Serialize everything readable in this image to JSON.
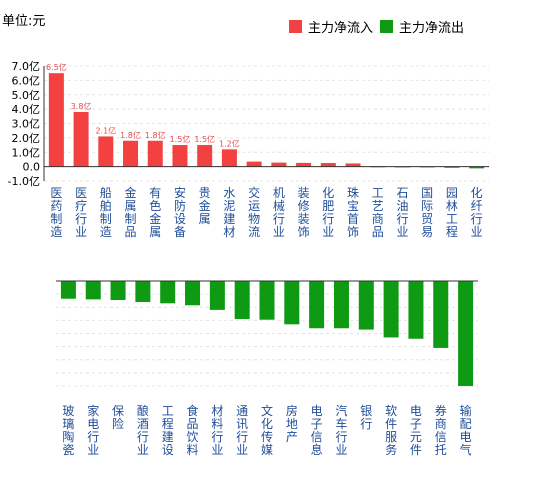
{
  "unit_label": "单位:元",
  "legend": [
    {
      "label": "主力净流入",
      "color": "#f34040"
    },
    {
      "label": "主力净流出",
      "color": "#0e9a12"
    }
  ],
  "chart_data": [
    {
      "type": "bar",
      "ylim": [
        -1.0,
        7.0
      ],
      "ytick_labels": [
        "7.0亿",
        "6.0亿",
        "5.0亿",
        "4.0亿",
        "3.0亿",
        "2.0亿",
        "1.0亿",
        "0.0",
        "-1.0亿"
      ],
      "yticks": [
        7,
        6,
        5,
        4,
        3,
        2,
        1,
        0,
        -1
      ],
      "grid": true,
      "categories": [
        "医药制造",
        "医疗行业",
        "船舶制造",
        "金属制品",
        "有色金属",
        "安防设备",
        "贵金属",
        "水泥建材",
        "交运物流",
        "机械行业",
        "装修装饰",
        "化肥行业",
        "珠宝首饰",
        "工艺商品",
        "石油行业",
        "国际贸易",
        "园林工程",
        "化纤行业"
      ],
      "values": [
        6.5,
        3.8,
        2.1,
        1.8,
        1.8,
        1.5,
        1.5,
        1.2,
        0.35,
        0.28,
        0.26,
        0.25,
        0.22,
        0.02,
        0.01,
        0.01,
        -0.08,
        -0.12
      ],
      "data_labels": [
        "6.5亿",
        "3.8亿",
        "2.1亿",
        "1.8亿",
        "1.8亿",
        "1.5亿",
        "1.5亿",
        "1.2亿",
        "",
        "",
        "",
        "",
        "",
        "",
        "",
        "",
        "",
        ""
      ]
    },
    {
      "type": "bar",
      "ylim": [
        -8.0,
        0
      ],
      "grid": true,
      "categories": [
        "玻璃陶瓷",
        "家电行业",
        "保险",
        "酿酒行业",
        "工程建设",
        "食品饮料",
        "材料行业",
        "通讯行业",
        "文化传媒",
        "房地产",
        "电子信息",
        "汽车行业",
        "银行",
        "软件服务",
        "电子元件",
        "券商信托",
        "输配电气"
      ],
      "values": [
        -1.35,
        -1.4,
        -1.45,
        -1.6,
        -1.7,
        -1.85,
        -2.2,
        -2.9,
        -2.95,
        -3.3,
        -3.6,
        -3.6,
        -3.7,
        -4.3,
        -4.4,
        -5.1,
        -8.0
      ]
    }
  ]
}
